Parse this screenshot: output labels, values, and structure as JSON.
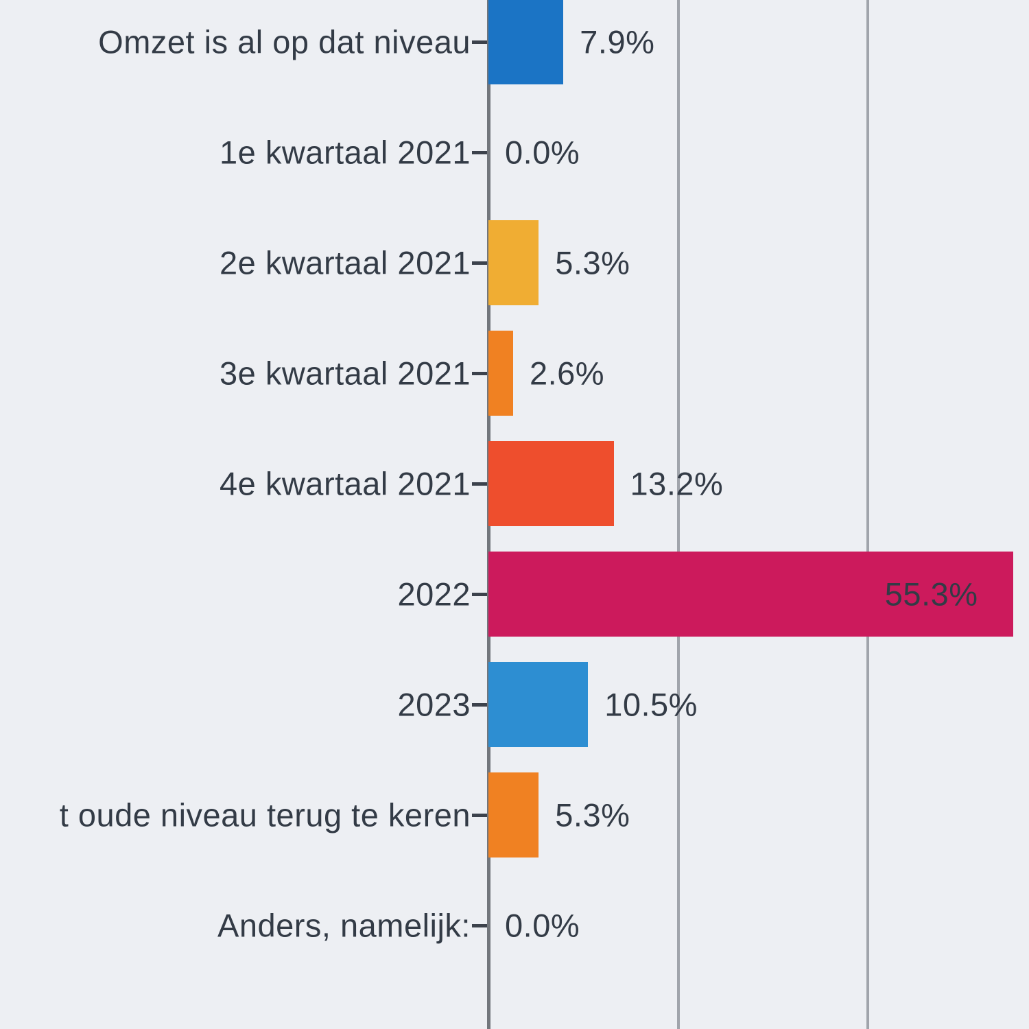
{
  "chart_data": {
    "type": "bar",
    "orientation": "horizontal",
    "title": "",
    "xlabel": "",
    "ylabel": "",
    "categories": [
      "Omzet is al op dat niveau",
      "1e kwartaal 2021",
      "2e kwartaal 2021",
      "3e kwartaal 2021",
      "4e kwartaal 2021",
      "2022",
      "2023",
      "t oude niveau terug te keren",
      "Anders, namelijk:"
    ],
    "values": [
      7.9,
      0.0,
      5.3,
      2.6,
      13.2,
      55.3,
      10.5,
      5.3,
      0.0
    ],
    "value_labels": [
      "7.9%",
      "0.0%",
      "5.3%",
      "2.6%",
      "13.2%",
      "55.3%",
      "10.5%",
      "5.3%",
      "0.0%"
    ],
    "bar_colors": [
      "#1b74c5",
      "#1b74c5",
      "#f0ad33",
      "#f08122",
      "#ee4e2d",
      "#cc1a5c",
      "#2d8ed2",
      "#f08122",
      "#f08122"
    ],
    "xlim": [
      0,
      57
    ],
    "gridlines_percent": [
      20,
      40
    ],
    "grid": true,
    "legend": "none",
    "colors": {
      "background": "#edeff3",
      "axis_line": "#72767c",
      "grid_line": "#a0a4ab",
      "text": "#333b46",
      "tick_mark": "#3c424c"
    }
  }
}
